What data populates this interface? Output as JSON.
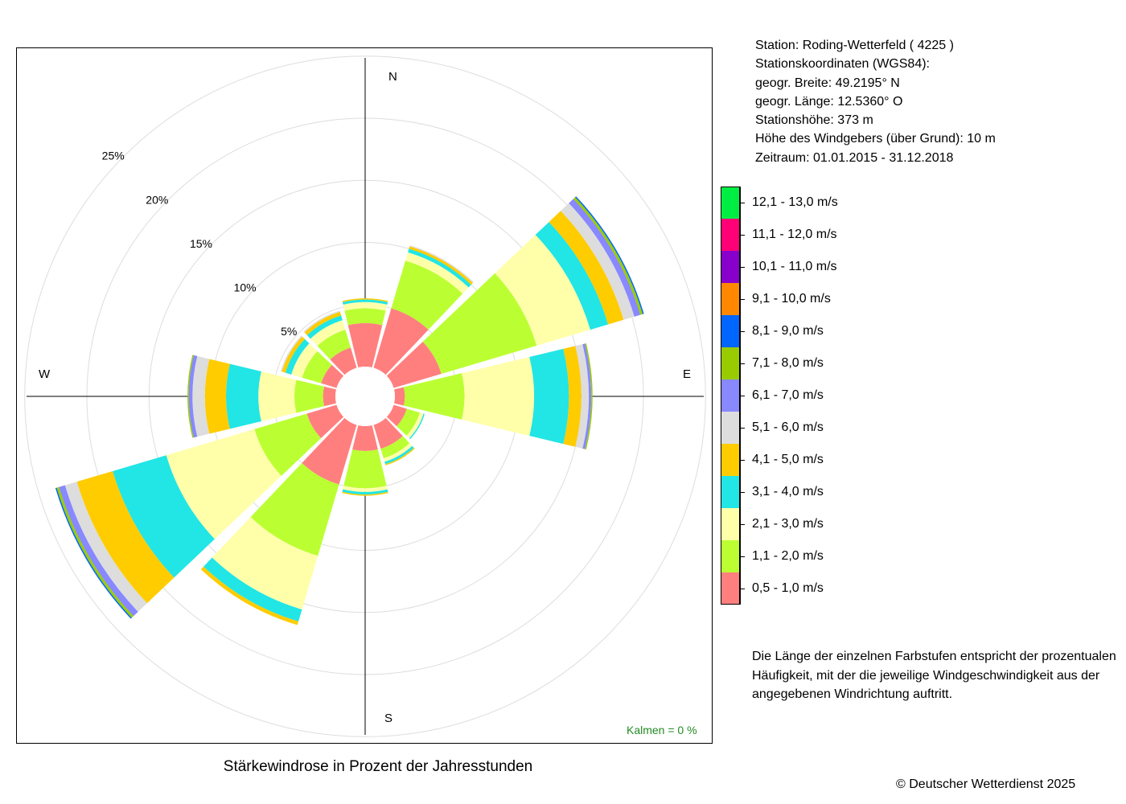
{
  "station_info": [
    "Station:  Roding-Wetterfeld  ( 4225 )",
    "Stationskoordinaten (WGS84):",
    "geogr. Breite: 49.2195° N",
    "geogr. Länge: 12.5360° O",
    "Stationshöhe: 373 m",
    "Höhe des Windgebers (über Grund): 10 m",
    "Zeitraum: 01.01.2015 - 31.12.2018"
  ],
  "legend_classes": [
    {
      "label": "12,1 - 13,0 m/s",
      "color": "#00EE44"
    },
    {
      "label": "11,1 - 12,0 m/s",
      "color": "#FF0077"
    },
    {
      "label": "10,1 - 11,0 m/s",
      "color": "#8800CC"
    },
    {
      "label": "9,1 - 10,0 m/s",
      "color": "#FF8800"
    },
    {
      "label": "8,1 - 9,0 m/s",
      "color": "#0066FF"
    },
    {
      "label": "7,1 - 8,0 m/s",
      "color": "#99CC00"
    },
    {
      "label": "6,1 - 7,0 m/s",
      "color": "#8888FF"
    },
    {
      "label": "5,1 - 6,0 m/s",
      "color": "#DDDDDD"
    },
    {
      "label": "4,1 - 5,0 m/s",
      "color": "#FFCC00"
    },
    {
      "label": "3,1 - 4,0 m/s",
      "color": "#22E5E5"
    },
    {
      "label": "2,1 - 3,0 m/s",
      "color": "#FFFFAA"
    },
    {
      "label": "1,1 - 2,0 m/s",
      "color": "#BBFF33"
    },
    {
      "label": "0,5 - 1,0 m/s",
      "color": "#FF7F7F"
    }
  ],
  "note_lines": [
    "Die Länge der einzelnen Farbstufen entspricht der prozentualen",
    "Häufigkeit, mit der die jeweilige Windgeschwindigkeit aus der",
    "angegebenen Windrichtung auftritt."
  ],
  "copyright": "© Deutscher Wetterdienst  2025",
  "chart_data": {
    "type": "windrose",
    "title": "Stärkewindrose in Prozent der Jahresstunden",
    "calms": "Kalmen  =  0 %",
    "compass_labels": {
      "N": "N",
      "E": "E",
      "S": "S",
      "W": "W"
    },
    "radial_ticks": [
      5,
      10,
      15,
      20,
      25
    ],
    "radial_tick_labels": [
      "5%",
      "10%",
      "15%",
      "20%",
      "25%"
    ],
    "speed_classes_order": [
      "0,5 - 1,0 m/s",
      "1,1 - 2,0 m/s",
      "2,1 - 3,0 m/s",
      "3,1 - 4,0 m/s",
      "4,1 - 5,0 m/s",
      "5,1 - 6,0 m/s",
      "6,1 - 7,0 m/s",
      "7,1 - 8,0 m/s",
      "8,1 - 9,0 m/s",
      "9,1 - 10,0 m/s",
      "10,1 - 11,0 m/s",
      "11,1 - 12,0 m/s",
      "12,1 - 13,0 m/s"
    ],
    "directions_deg": [
      0,
      30,
      60,
      90,
      120,
      150,
      180,
      210,
      240,
      270,
      300,
      330
    ],
    "frequencies_pct": [
      [
        3.5,
        1.2,
        0.5,
        0.2,
        0.1,
        0,
        0,
        0,
        0,
        0,
        0,
        0,
        0
      ],
      [
        5.0,
        4.0,
        0.7,
        0.3,
        0.2,
        0.1,
        0,
        0,
        0,
        0,
        0,
        0,
        0
      ],
      [
        4.0,
        8.0,
        4.5,
        1.5,
        1.3,
        0.9,
        0.5,
        0.2,
        0.1,
        0,
        0,
        0,
        0
      ],
      [
        0.8,
        4.8,
        5.6,
        2.8,
        1.0,
        0.6,
        0.2,
        0.1,
        0,
        0,
        0,
        0,
        0
      ],
      [
        1.1,
        1.1,
        0.3,
        0.1,
        0,
        0,
        0,
        0,
        0,
        0,
        0,
        0,
        0
      ],
      [
        2.0,
        0.8,
        0.3,
        0.2,
        0.1,
        0,
        0,
        0,
        0,
        0,
        0,
        0,
        0
      ],
      [
        2.0,
        3.0,
        0.3,
        0.2,
        0.1,
        0,
        0,
        0,
        0,
        0,
        0,
        0,
        0
      ],
      [
        5.0,
        6.0,
        4.5,
        1.0,
        0.3,
        0,
        0,
        0,
        0,
        0,
        0,
        0,
        0
      ],
      [
        2.5,
        4.4,
        7.4,
        4.5,
        3.0,
        1.0,
        0.5,
        0.2,
        0.1,
        0,
        0,
        0,
        0
      ],
      [
        1.0,
        2.3,
        2.9,
        2.6,
        1.7,
        1.0,
        0.3,
        0.1,
        0,
        0,
        0,
        0,
        0
      ],
      [
        1.3,
        1.6,
        0.9,
        0.5,
        0.3,
        0.1,
        0,
        0,
        0,
        0,
        0,
        0,
        0
      ],
      [
        1.7,
        1.5,
        0.8,
        0.4,
        0.3,
        0.1,
        0,
        0,
        0,
        0,
        0,
        0,
        0
      ]
    ]
  }
}
